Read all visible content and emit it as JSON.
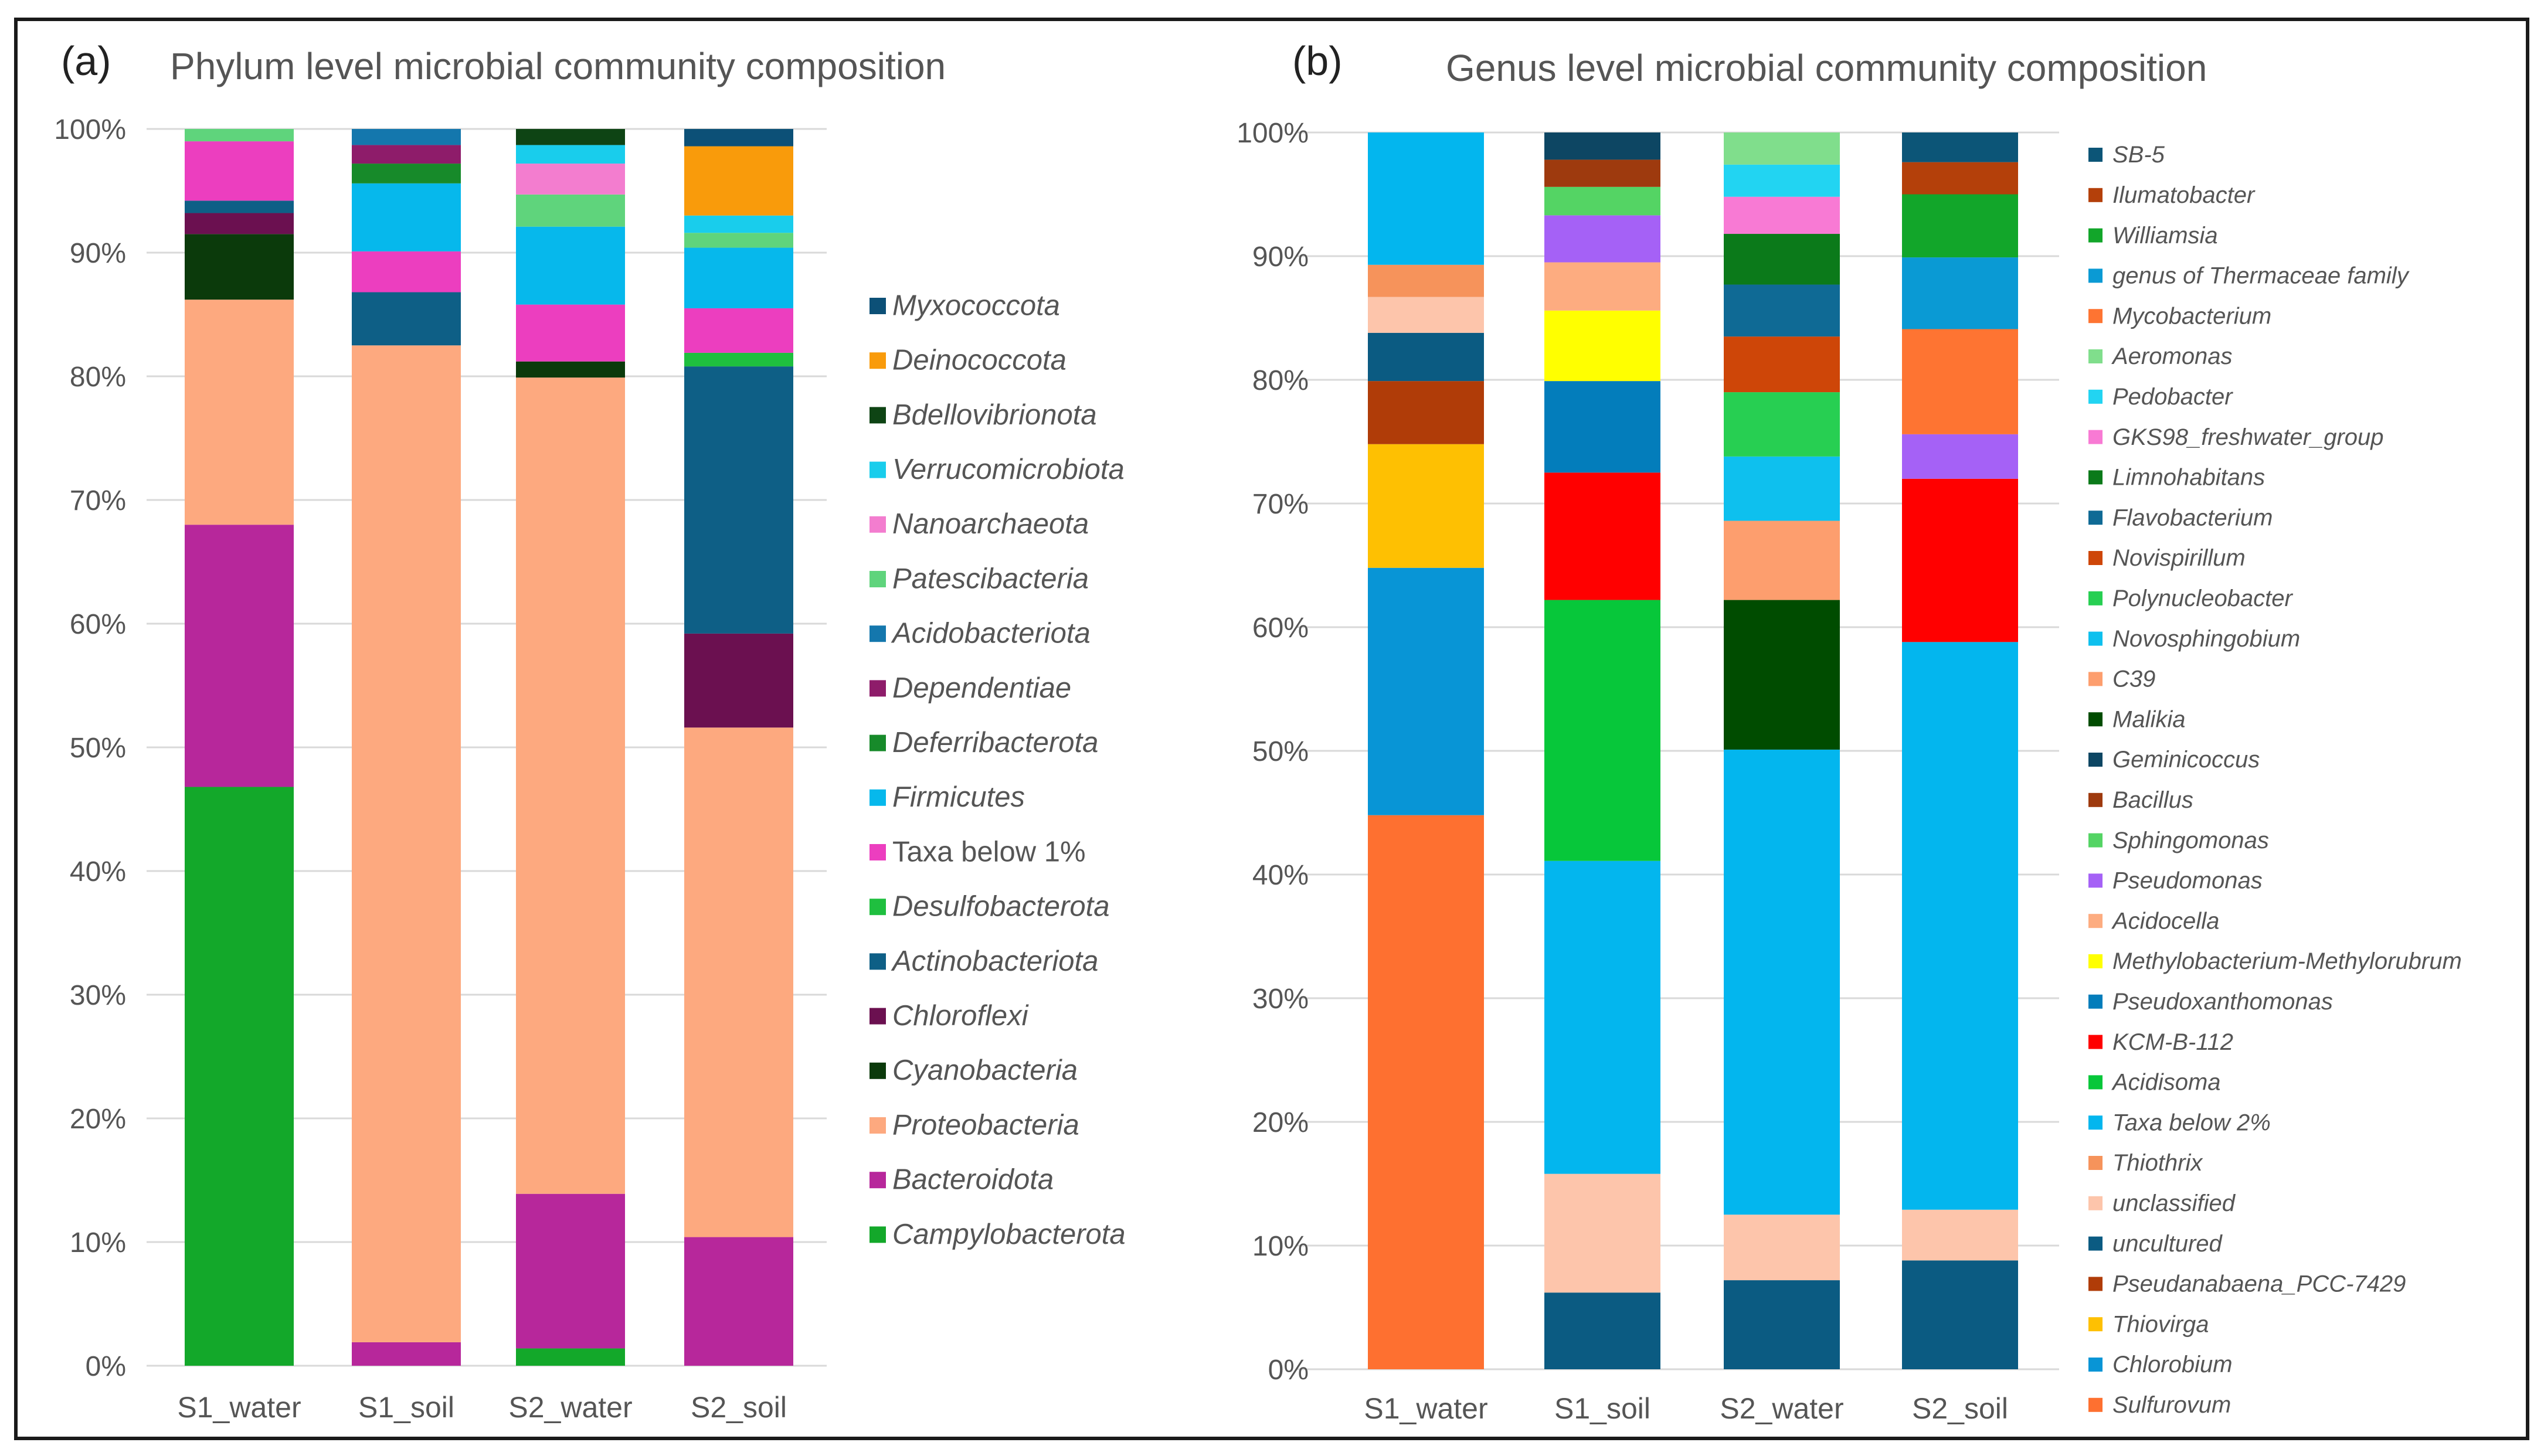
{
  "chart_data": [
    {
      "panel": "(a)",
      "type": "bar",
      "stacked": true,
      "title": "Phylum level microbial community composition",
      "categories": [
        "S1_water",
        "S1_soil",
        "S2_water",
        "S2_soil"
      ],
      "ylim": [
        0,
        100
      ],
      "yticks": [
        "0%",
        "10%",
        "20%",
        "30%",
        "40%",
        "50%",
        "60%",
        "70%",
        "80%",
        "90%",
        "100%"
      ],
      "series": [
        {
          "name": "Campylobacterota",
          "color": "#13a82a",
          "values": [
            46.8,
            0,
            1.4,
            0
          ]
        },
        {
          "name": "Bacteroidota",
          "color": "#b7279b",
          "values": [
            21.2,
            1.9,
            12.5,
            10.4
          ]
        },
        {
          "name": "Proteobacteria",
          "color": "#fda97f",
          "values": [
            18.2,
            80.6,
            66.0,
            41.2
          ]
        },
        {
          "name": "Cyanobacteria",
          "color": "#0b3a0b",
          "values": [
            5.3,
            0,
            1.3,
            0
          ]
        },
        {
          "name": "Chloroflexi",
          "color": "#6b1050",
          "values": [
            1.7,
            0,
            0,
            7.6
          ]
        },
        {
          "name": "Actinobacteriota",
          "color": "#0e5f86",
          "values": [
            1.0,
            4.3,
            0,
            21.6
          ]
        },
        {
          "name": "Desulfobacterota",
          "color": "#1fbf3f",
          "values": [
            0,
            0,
            0,
            1.1
          ]
        },
        {
          "name": "Taxa below 1%",
          "color": "#ec3ebf",
          "values": [
            4.8,
            3.3,
            4.6,
            3.6
          ]
        },
        {
          "name": "Firmicutes",
          "color": "#06b8ec",
          "values": [
            0,
            5.5,
            6.3,
            4.9
          ]
        },
        {
          "name": "Deferribacterota",
          "color": "#178a2a",
          "values": [
            0,
            1.6,
            0,
            0
          ]
        },
        {
          "name": "Dependentiae",
          "color": "#8e1c6a",
          "values": [
            0,
            1.5,
            0,
            0
          ]
        },
        {
          "name": "Acidobacteriota",
          "color": "#1477ad",
          "values": [
            0,
            1.3,
            0,
            0
          ]
        },
        {
          "name": "Patescibacteria",
          "color": "#5fd47c",
          "values": [
            1.0,
            0,
            2.6,
            1.2
          ]
        },
        {
          "name": "Nanoarchaeota",
          "color": "#f37dcf",
          "values": [
            0,
            0,
            2.5,
            0
          ]
        },
        {
          "name": "Verrucomicrobiota",
          "color": "#19cdec",
          "values": [
            0,
            0,
            1.5,
            1.4
          ]
        },
        {
          "name": "Bdellovibrionota",
          "color": "#0e4414",
          "values": [
            0,
            0,
            1.3,
            0
          ]
        },
        {
          "name": "Deinococcota",
          "color": "#f99b0b",
          "values": [
            0,
            0,
            0,
            5.6
          ]
        },
        {
          "name": "Myxococcota",
          "color": "#0c5077",
          "values": [
            0,
            0,
            0,
            1.4
          ]
        }
      ],
      "legend_order": [
        "Myxococcota",
        "Deinococcota",
        "Bdellovibrionota",
        "Verrucomicrobiota",
        "Nanoarchaeota",
        "Patescibacteria",
        "Acidobacteriota",
        "Dependentiae",
        "Deferribacterota",
        "Firmicutes",
        "Taxa below 1%",
        "Desulfobacterota",
        "Actinobacteriota",
        "Chloroflexi",
        "Cyanobacteria",
        "Proteobacteria",
        "Bacteroidota",
        "Campylobacterota"
      ],
      "legend_position": "right"
    },
    {
      "panel": "(b)",
      "type": "bar",
      "stacked": true,
      "title": "Genus level microbial community composition",
      "categories": [
        "S1_water",
        "S1_soil",
        "S2_water",
        "S2_soil"
      ],
      "ylim": [
        0,
        100
      ],
      "yticks": [
        "0%",
        "10%",
        "20%",
        "30%",
        "40%",
        "50%",
        "60%",
        "70%",
        "80%",
        "90%",
        "100%"
      ],
      "series": [
        {
          "name": "Sulfurovum",
          "color": "#fe7030",
          "values": [
            44.8,
            0,
            0,
            0
          ]
        },
        {
          "name": "Chlorobium",
          "color": "#0895d6",
          "values": [
            20.0,
            0,
            0,
            0
          ]
        },
        {
          "name": "Thiovirga",
          "color": "#fec002",
          "values": [
            10.0,
            0,
            0,
            0
          ]
        },
        {
          "name": "Pseudanabaena_PCC-7429",
          "color": "#b03c08",
          "values": [
            5.1,
            0,
            0,
            0
          ]
        },
        {
          "name": "uncultured",
          "color": "#0b5b82",
          "values": [
            3.9,
            6.2,
            7.2,
            8.8
          ]
        },
        {
          "name": "unclassified",
          "color": "#fdc5ab",
          "values": [
            2.9,
            9.6,
            5.3,
            4.1
          ]
        },
        {
          "name": "Thiothrix",
          "color": "#f6935b",
          "values": [
            2.6,
            0,
            0,
            0
          ]
        },
        {
          "name": "Taxa below 2%",
          "color": "#03b6ee",
          "values": [
            10.7,
            25.3,
            37.6,
            45.9
          ]
        },
        {
          "name": "Acidisoma",
          "color": "#07c73a",
          "values": [
            0,
            21.1,
            0,
            0
          ]
        },
        {
          "name": "KCM-B-112",
          "color": "#ff0000",
          "values": [
            0,
            10.3,
            0,
            13.2
          ]
        },
        {
          "name": "Pseudoxanthomonas",
          "color": "#037dbb",
          "values": [
            0,
            7.4,
            0,
            0
          ]
        },
        {
          "name": "Methylobacterium-Methylorubrum",
          "color": "#ffff00",
          "values": [
            0,
            5.7,
            0,
            0
          ]
        },
        {
          "name": "Acidocella",
          "color": "#fdac80",
          "values": [
            0,
            3.9,
            0,
            0
          ]
        },
        {
          "name": "Pseudomonas",
          "color": "#a561f6",
          "values": [
            0,
            3.8,
            0,
            3.6
          ]
        },
        {
          "name": "Sphingomonas",
          "color": "#54d464",
          "values": [
            0,
            2.3,
            0,
            0
          ]
        },
        {
          "name": "Bacillus",
          "color": "#9e3a0e",
          "values": [
            0,
            2.2,
            0,
            0
          ]
        },
        {
          "name": "Geminicoccus",
          "color": "#0d4663",
          "values": [
            0,
            2.2,
            0,
            0
          ]
        },
        {
          "name": "Malikia",
          "color": "#004c00",
          "values": [
            0,
            0,
            12.1,
            0
          ]
        },
        {
          "name": "C39",
          "color": "#fd9e6e",
          "values": [
            0,
            0,
            6.4,
            0
          ]
        },
        {
          "name": "Novosphingobium",
          "color": "#0ec0ee",
          "values": [
            0,
            0,
            5.2,
            0
          ]
        },
        {
          "name": "Polynucleobacter",
          "color": "#27cf52",
          "values": [
            0,
            0,
            5.2,
            0
          ]
        },
        {
          "name": "Novispirillum",
          "color": "#ce4608",
          "values": [
            0,
            0,
            4.5,
            0
          ]
        },
        {
          "name": "Flavobacterium",
          "color": "#0f6a95",
          "values": [
            0,
            0,
            4.2,
            0
          ]
        },
        {
          "name": "Limnohabitans",
          "color": "#0b7a1a",
          "values": [
            0,
            0,
            4.1,
            0
          ]
        },
        {
          "name": "GKS98_freshwater_group",
          "color": "#f87ad4",
          "values": [
            0,
            0,
            3.0,
            0
          ]
        },
        {
          "name": "Pedobacter",
          "color": "#22d4f2",
          "values": [
            0,
            0,
            2.6,
            0
          ]
        },
        {
          "name": "Aeromonas",
          "color": "#80de8c",
          "values": [
            0,
            0,
            2.6,
            0
          ]
        },
        {
          "name": "Mycobacterium",
          "color": "#fe7432",
          "values": [
            0,
            0,
            0,
            8.5
          ]
        },
        {
          "name": "genus of Thermaceae family",
          "color": "#0a9ad4",
          "values": [
            0,
            0,
            0,
            5.8
          ]
        },
        {
          "name": "Williamsia",
          "color": "#12a62a",
          "values": [
            0,
            0,
            0,
            5.1
          ]
        },
        {
          "name": "Ilumatobacter",
          "color": "#b4400a",
          "values": [
            0,
            0,
            0,
            2.6
          ]
        },
        {
          "name": "SB-5",
          "color": "#0c5577",
          "values": [
            0,
            0,
            0,
            2.4
          ]
        }
      ],
      "legend_order": [
        "SB-5",
        "Ilumatobacter",
        "Williamsia",
        "genus of Thermaceae family",
        "Mycobacterium",
        "Aeromonas",
        "Pedobacter",
        "GKS98_freshwater_group",
        "Limnohabitans",
        "Flavobacterium",
        "Novispirillum",
        "Polynucleobacter",
        "Novosphingobium",
        "C39",
        "Malikia",
        "Geminicoccus",
        "Bacillus",
        "Sphingomonas",
        "Pseudomonas",
        "Acidocella",
        "Methylobacterium-Methylorubrum",
        "Pseudoxanthomonas",
        "KCM-B-112",
        "Acidisoma",
        "Taxa below 2%",
        "Thiothrix",
        "unclassified",
        "uncultured",
        "Pseudanabaena_PCC-7429",
        "Thiovirga",
        "Chlorobium",
        "Sulfurovum"
      ],
      "legend_position": "right"
    }
  ]
}
